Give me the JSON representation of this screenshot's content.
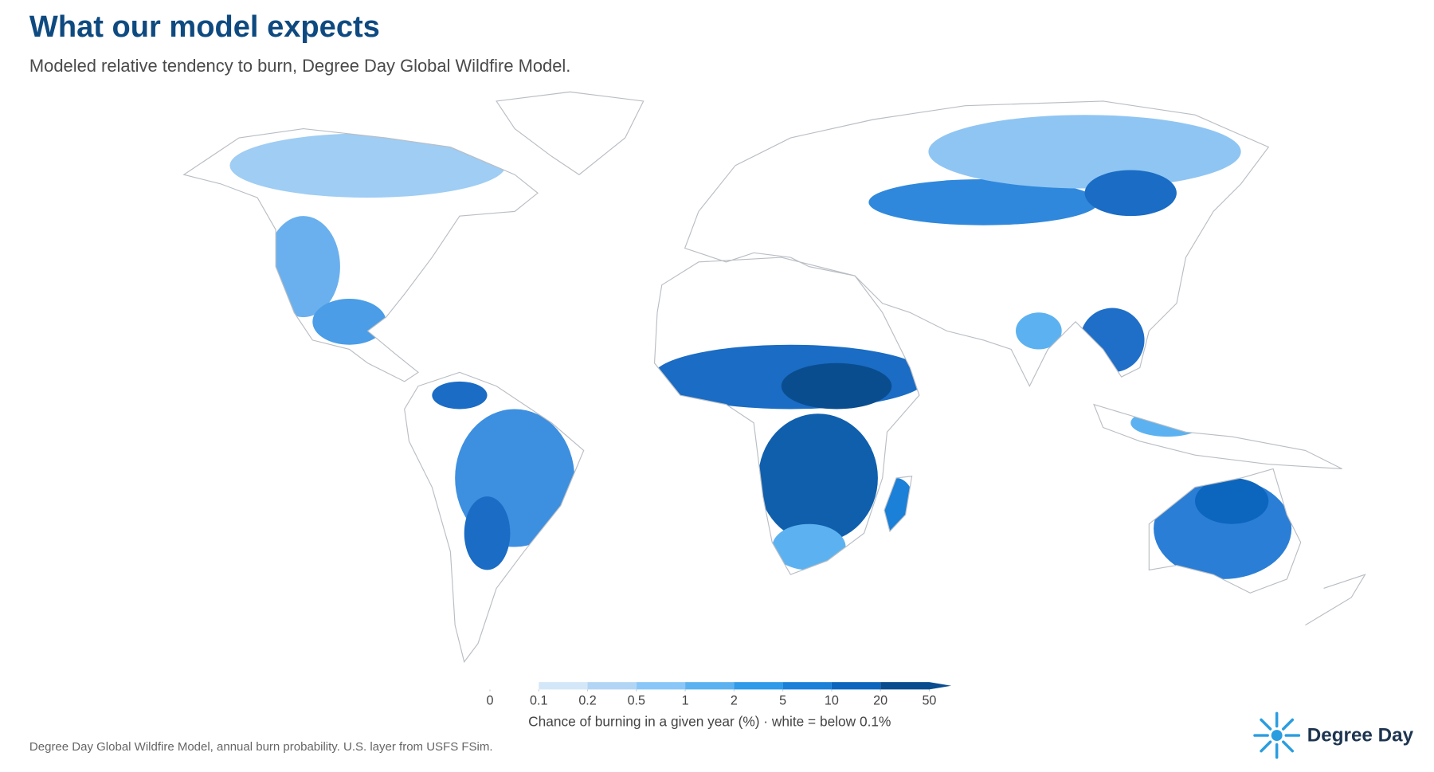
{
  "header": {
    "title": "What our model expects",
    "subtitle": "Modeled relative tendency to burn, Degree Day Global Wildfire Model."
  },
  "legend": {
    "ticks": [
      0,
      0.1,
      0.2,
      0.5,
      1,
      2,
      5,
      10,
      20,
      50
    ],
    "colors": [
      "#ffffff",
      "#d4e7f8",
      "#b2d5f5",
      "#8ac7f8",
      "#5cb2f0",
      "#2f9be9",
      "#1a80d8",
      "#0d66bd",
      "#0a4d8f"
    ],
    "label": "Chance of burning in a given year (%)  ·  white = below 0.1%"
  },
  "footer": {
    "source": "Degree Day Global Wildfire Model, annual burn probability. U.S. layer from USFS FSim.",
    "logo": "Degree Day"
  }
}
